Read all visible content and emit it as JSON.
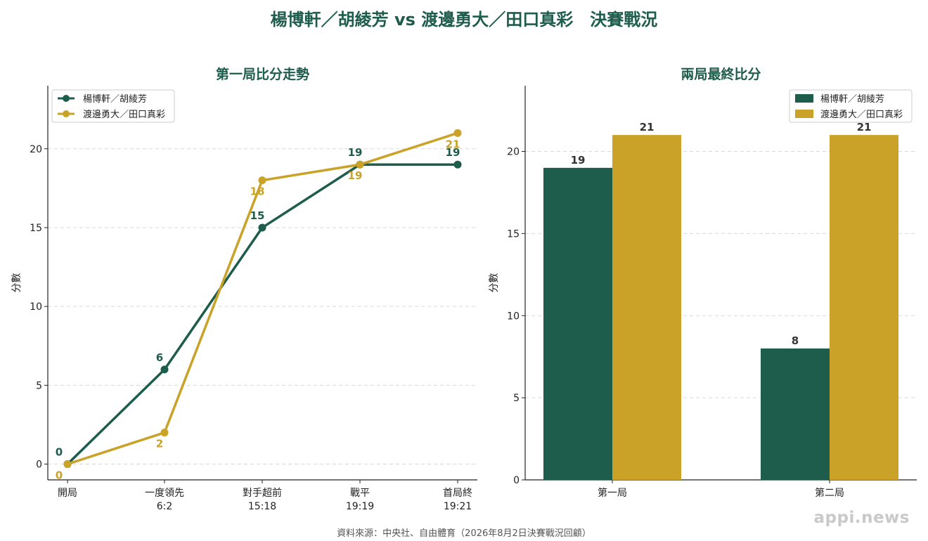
{
  "title": "楊博軒／胡綾芳 vs 渡邊勇大／田口真彩　決賽戰況",
  "source": "資料來源：中央社、自由體育（2026年8月2日決賽戰況回顧）",
  "watermark": "appi.news",
  "colors": {
    "team_a": "#1e5c4c",
    "team_b": "#c9a227"
  },
  "chart_data": [
    {
      "type": "line",
      "title": "第一局比分走勢",
      "ylabel": "分數",
      "ylim": [
        -1,
        24
      ],
      "yticks": [
        0,
        5,
        10,
        15,
        20
      ],
      "x": [
        {
          "line1": "開局",
          "line2": ""
        },
        {
          "line1": "一度領先",
          "line2": "6:2"
        },
        {
          "line1": "對手超前",
          "line2": "15:18"
        },
        {
          "line1": "戰平",
          "line2": "19:19"
        },
        {
          "line1": "首局終",
          "line2": "19:21"
        }
      ],
      "grid": true,
      "legend": "top-left",
      "series": [
        {
          "name": "楊博軒／胡綾芳",
          "values": [
            0,
            6,
            15,
            19,
            19
          ],
          "labels": [
            "0",
            "6",
            "15",
            "19",
            "19"
          ]
        },
        {
          "name": "渡邊勇大／田口真彩",
          "values": [
            0,
            2,
            18,
            19,
            21
          ],
          "labels": [
            "0",
            "2",
            "18",
            "19",
            "21"
          ]
        }
      ]
    },
    {
      "type": "bar",
      "title": "兩局最終比分",
      "ylabel": "分數",
      "ylim": [
        0,
        24
      ],
      "yticks": [
        0,
        5,
        10,
        15,
        20
      ],
      "categories": [
        "第一局",
        "第二局"
      ],
      "grid": true,
      "legend": "top-right",
      "series": [
        {
          "name": "楊博軒／胡綾芳",
          "values": [
            19,
            8
          ],
          "labels": [
            "19",
            "8"
          ]
        },
        {
          "name": "渡邊勇大／田口真彩",
          "values": [
            21,
            21
          ],
          "labels": [
            "21",
            "21"
          ]
        }
      ]
    }
  ]
}
